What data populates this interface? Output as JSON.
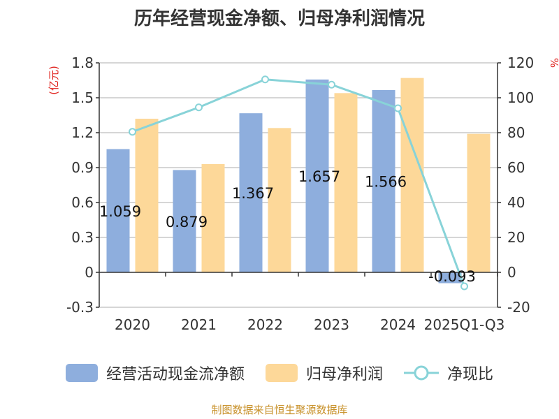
{
  "title": "历年经营现金净额、归母净利润情况",
  "source": "制图数据来自恒生聚源数据库",
  "chart_data": {
    "type": "bar",
    "categories": [
      "2020",
      "2021",
      "2022",
      "2023",
      "2024",
      "2025Q1-Q3"
    ],
    "series": [
      {
        "name": "经营活动现金流净额",
        "kind": "bar",
        "axis": "left",
        "color": "#8eaedd",
        "values": [
          1.059,
          0.879,
          1.367,
          1.657,
          1.566,
          -0.093
        ],
        "labels": [
          "1.059",
          "0.879",
          "1.367",
          "1.657",
          "1.566",
          "-0.093"
        ]
      },
      {
        "name": "归母净利润",
        "kind": "bar",
        "axis": "left",
        "color": "#fdd899",
        "values": [
          1.32,
          0.93,
          1.24,
          1.54,
          1.67,
          1.19
        ]
      },
      {
        "name": "净现比",
        "kind": "line",
        "axis": "right",
        "color": "#88d3d8",
        "values": [
          80.5,
          94.5,
          110.5,
          107.5,
          94,
          -8
        ]
      }
    ],
    "y_left": {
      "unit": "(亿元)",
      "ylim": [
        -0.3,
        1.8
      ],
      "ticks": [
        -0.3,
        0,
        0.3,
        0.6,
        0.9,
        1.2,
        1.5,
        1.8
      ],
      "tick_labels": [
        "-0.3",
        "0",
        "0.3",
        "0.6",
        "0.9",
        "1.2",
        "1.5",
        "1.8"
      ]
    },
    "y_right": {
      "unit": "%",
      "ylim": [
        -20,
        120
      ],
      "ticks": [
        -20,
        0,
        20,
        40,
        60,
        80,
        100,
        120
      ],
      "tick_labels": [
        "-20",
        "0",
        "20",
        "40",
        "60",
        "80",
        "100",
        "120"
      ]
    },
    "grid": true,
    "legend_position": "bottom"
  }
}
